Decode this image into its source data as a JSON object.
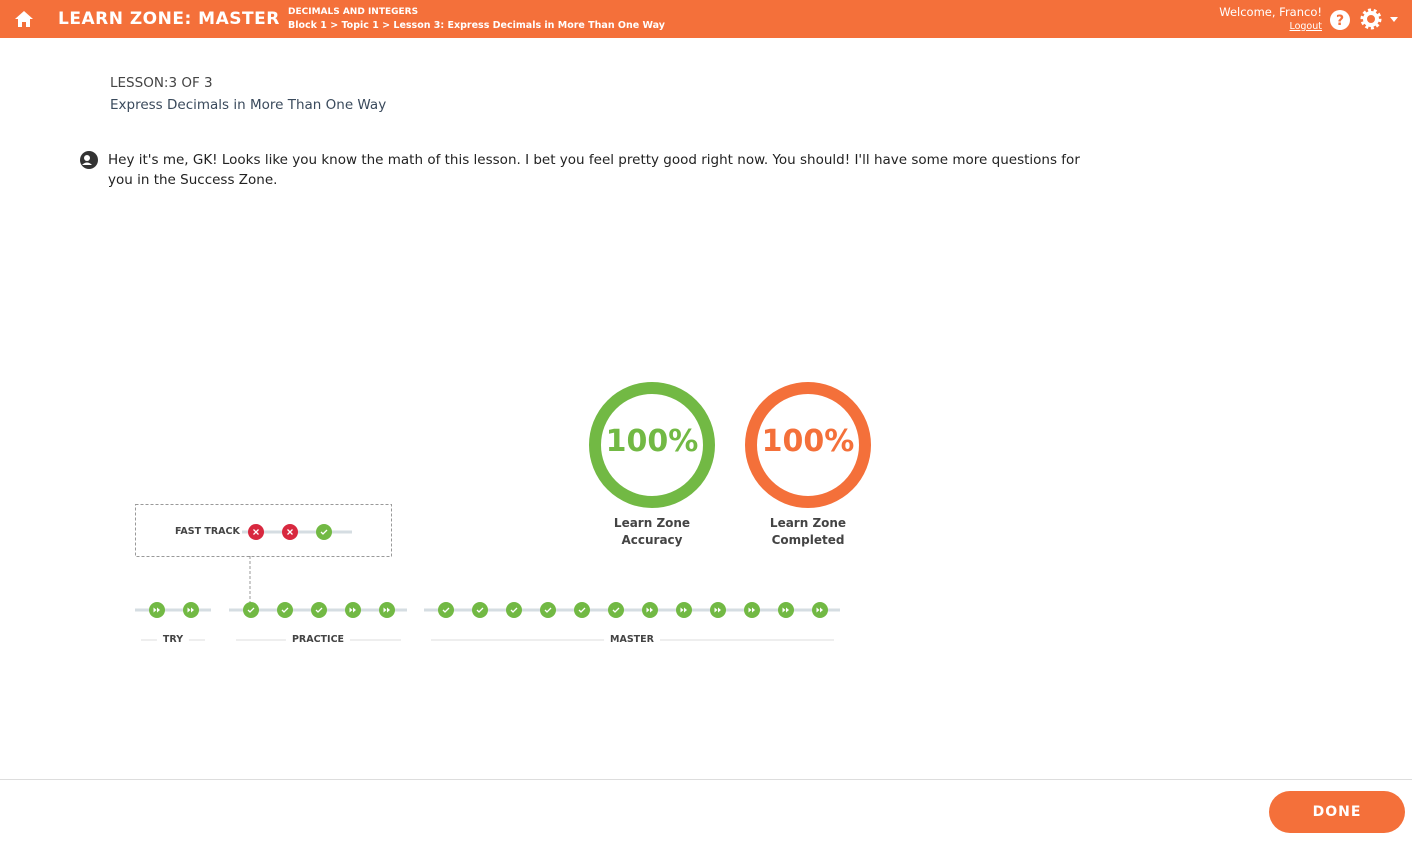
{
  "header": {
    "title": "LEARN ZONE: MASTER",
    "section": "DECIMALS AND INTEGERS",
    "breadcrumb": "Block 1 > Topic 1 > Lesson 3: Express Decimals in More Than One Way",
    "welcome": "Welcome, Franco!",
    "logout": "Logout"
  },
  "lesson": {
    "counter": "LESSON:3 OF 3",
    "title": "Express Decimals in More Than One Way"
  },
  "message": {
    "text": "Hey it's me, GK! Looks like you know the math of this lesson. I bet you feel pretty good right now. You should! I'll have some more questions for you in the Success Zone."
  },
  "stats": [
    {
      "value": "100%",
      "label": "Learn Zone Accuracy"
    },
    {
      "value": "100%",
      "label": "Learn Zone Completed"
    }
  ],
  "progress": {
    "fast_track": "FAST TRACK",
    "sections": [
      "TRY",
      "PRACTICE",
      "MASTER"
    ]
  },
  "footer": {
    "button": "DONE"
  }
}
